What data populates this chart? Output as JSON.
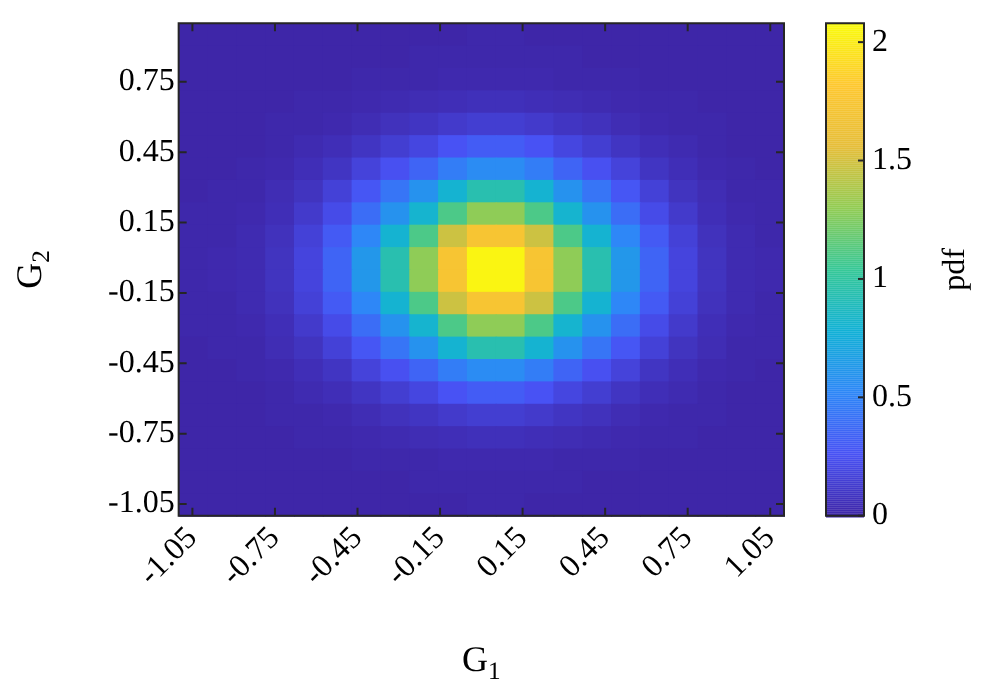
{
  "chart_data": {
    "type": "heatmap",
    "xlabel": "G$_{1}$",
    "ylabel": "G$_{2}$",
    "clabel": "pdf",
    "xlim": [
      -1.1,
      1.1
    ],
    "ylim": [
      -1.1,
      1.0
    ],
    "xticks": [
      -1.05,
      -0.75,
      -0.45,
      -0.15,
      0.15,
      0.45,
      0.75,
      1.05
    ],
    "yticks": [
      -1.05,
      -0.75,
      -0.45,
      -0.15,
      0.15,
      0.45,
      0.75
    ],
    "clim": [
      0,
      2.08
    ],
    "cticks": [
      0,
      0.5,
      1,
      1.5,
      2
    ],
    "cells": [
      [
        0,
        0,
        0,
        0,
        0,
        0,
        0,
        0,
        0,
        0,
        0.01,
        0.01,
        0,
        0,
        0,
        0,
        0,
        0,
        0,
        0,
        0
      ],
      [
        0,
        0,
        0,
        0,
        0,
        0,
        0,
        0,
        0.01,
        0.01,
        0.01,
        0.01,
        0.01,
        0.01,
        0,
        0,
        0,
        0,
        0,
        0,
        0
      ],
      [
        0,
        0,
        0,
        0,
        0,
        0,
        0.01,
        0.01,
        0.01,
        0.02,
        0.02,
        0.02,
        0.02,
        0.01,
        0.01,
        0.01,
        0,
        0,
        0,
        0,
        0
      ],
      [
        0,
        0,
        0,
        0,
        0.01,
        0.01,
        0.02,
        0.03,
        0.04,
        0.05,
        0.06,
        0.06,
        0.05,
        0.04,
        0.03,
        0.02,
        0.01,
        0.01,
        0,
        0,
        0
      ],
      [
        0,
        0,
        0,
        0.01,
        0.01,
        0.02,
        0.04,
        0.07,
        0.09,
        0.12,
        0.14,
        0.14,
        0.12,
        0.09,
        0.07,
        0.04,
        0.02,
        0.01,
        0.01,
        0,
        0
      ],
      [
        0,
        0,
        0,
        0.01,
        0.03,
        0.05,
        0.09,
        0.14,
        0.19,
        0.26,
        0.31,
        0.31,
        0.26,
        0.19,
        0.14,
        0.09,
        0.05,
        0.03,
        0.01,
        0,
        0
      ],
      [
        0,
        0,
        0.01,
        0.02,
        0.05,
        0.09,
        0.17,
        0.25,
        0.35,
        0.47,
        0.55,
        0.55,
        0.47,
        0.35,
        0.25,
        0.17,
        0.09,
        0.05,
        0.02,
        0.01,
        0
      ],
      [
        0,
        0.01,
        0.01,
        0.04,
        0.08,
        0.16,
        0.28,
        0.43,
        0.59,
        0.8,
        0.94,
        0.94,
        0.8,
        0.59,
        0.43,
        0.28,
        0.16,
        0.08,
        0.04,
        0.01,
        0.01
      ],
      [
        0.01,
        0.01,
        0.02,
        0.05,
        0.12,
        0.22,
        0.39,
        0.59,
        0.81,
        1.1,
        1.29,
        1.29,
        1.1,
        0.81,
        0.59,
        0.39,
        0.22,
        0.12,
        0.05,
        0.02,
        0.01
      ],
      [
        0.01,
        0.01,
        0.03,
        0.07,
        0.16,
        0.3,
        0.52,
        0.8,
        1.1,
        1.48,
        1.74,
        1.74,
        1.48,
        1.1,
        0.8,
        0.52,
        0.3,
        0.16,
        0.07,
        0.03,
        0.01
      ],
      [
        0.01,
        0.02,
        0.03,
        0.08,
        0.18,
        0.35,
        0.62,
        0.94,
        1.29,
        1.74,
        2.05,
        2.05,
        1.74,
        1.29,
        0.94,
        0.62,
        0.35,
        0.18,
        0.08,
        0.03,
        0.02
      ],
      [
        0.01,
        0.02,
        0.03,
        0.08,
        0.18,
        0.35,
        0.62,
        0.94,
        1.29,
        1.74,
        2.05,
        2.05,
        1.74,
        1.29,
        0.94,
        0.62,
        0.35,
        0.18,
        0.08,
        0.03,
        0.02
      ],
      [
        0.01,
        0.01,
        0.03,
        0.07,
        0.16,
        0.3,
        0.52,
        0.8,
        1.1,
        1.48,
        1.74,
        1.74,
        1.48,
        1.1,
        0.8,
        0.52,
        0.3,
        0.16,
        0.07,
        0.03,
        0.01
      ],
      [
        0.01,
        0.01,
        0.02,
        0.05,
        0.12,
        0.22,
        0.39,
        0.59,
        0.81,
        1.1,
        1.29,
        1.29,
        1.1,
        0.81,
        0.59,
        0.39,
        0.22,
        0.12,
        0.05,
        0.02,
        0.01
      ],
      [
        0,
        0.01,
        0.01,
        0.04,
        0.08,
        0.16,
        0.28,
        0.43,
        0.59,
        0.8,
        0.94,
        0.94,
        0.8,
        0.59,
        0.43,
        0.28,
        0.16,
        0.08,
        0.04,
        0.01,
        0.01
      ],
      [
        0,
        0,
        0.01,
        0.02,
        0.05,
        0.09,
        0.17,
        0.25,
        0.35,
        0.47,
        0.55,
        0.55,
        0.47,
        0.35,
        0.25,
        0.17,
        0.09,
        0.05,
        0.02,
        0.01,
        0
      ],
      [
        0,
        0,
        0,
        0.01,
        0.03,
        0.05,
        0.09,
        0.14,
        0.19,
        0.26,
        0.31,
        0.31,
        0.26,
        0.19,
        0.14,
        0.09,
        0.05,
        0.03,
        0.01,
        0,
        0
      ],
      [
        0,
        0,
        0,
        0.01,
        0.01,
        0.02,
        0.04,
        0.07,
        0.09,
        0.12,
        0.14,
        0.14,
        0.12,
        0.09,
        0.07,
        0.04,
        0.02,
        0.01,
        0.01,
        0,
        0
      ],
      [
        0,
        0,
        0,
        0,
        0.01,
        0.01,
        0.02,
        0.03,
        0.04,
        0.05,
        0.06,
        0.06,
        0.05,
        0.04,
        0.03,
        0.02,
        0.01,
        0.01,
        0,
        0,
        0
      ],
      [
        0,
        0,
        0,
        0,
        0,
        0,
        0.01,
        0.01,
        0.01,
        0.02,
        0.02,
        0.02,
        0.02,
        0.01,
        0.01,
        0.01,
        0,
        0,
        0,
        0,
        0
      ],
      [
        0,
        0,
        0,
        0,
        0,
        0,
        0,
        0,
        0.01,
        0.01,
        0.01,
        0.01,
        0.01,
        0.01,
        0,
        0,
        0,
        0,
        0,
        0,
        0
      ],
      [
        0,
        0,
        0,
        0,
        0,
        0,
        0,
        0,
        0,
        0,
        0.01,
        0.01,
        0,
        0,
        0,
        0,
        0,
        0,
        0,
        0,
        0
      ]
    ]
  }
}
